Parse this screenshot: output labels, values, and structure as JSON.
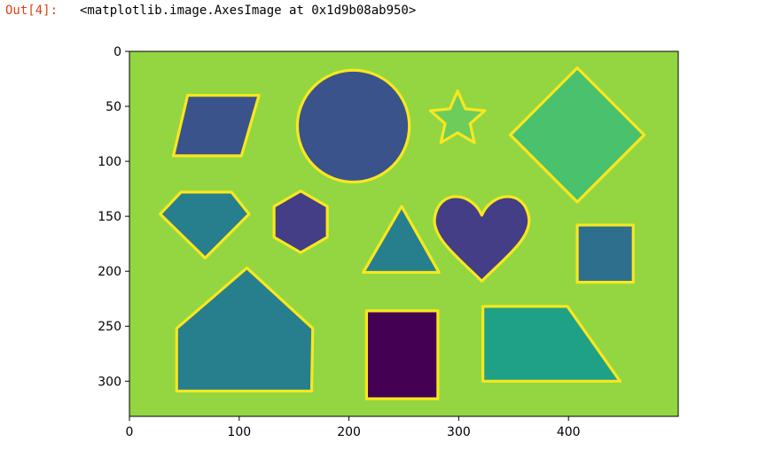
{
  "notebook": {
    "out_prompt": "Out[4]:",
    "out_text": "<matplotlib.image.AxesImage at 0x1d9b08ab950>"
  },
  "plot": {
    "type": "imshow",
    "x_ticks": [
      0,
      100,
      200,
      300,
      400
    ],
    "y_ticks": [
      0,
      50,
      100,
      150,
      200,
      250,
      300
    ],
    "x_range": [
      0,
      500
    ],
    "y_range": [
      0,
      332
    ],
    "colors": {
      "background": "#93d642",
      "outline": "#f9e71e",
      "dark_purple": "#440154",
      "indigo": "#433e85",
      "blue": "#3a538b",
      "steel_blue": "#2e6f8e",
      "teal": "#277f8e",
      "teal_green": "#1fa187",
      "green": "#4ac16d",
      "light_green": "#6ccd5a"
    },
    "shapes": [
      {
        "name": "parallelogram",
        "fill": "blue"
      },
      {
        "name": "circle",
        "fill": "blue"
      },
      {
        "name": "star",
        "fill": "light_green"
      },
      {
        "name": "diamond",
        "fill": "green"
      },
      {
        "name": "pentagon-gem",
        "fill": "teal"
      },
      {
        "name": "hexagon",
        "fill": "indigo"
      },
      {
        "name": "triangle",
        "fill": "teal"
      },
      {
        "name": "heart",
        "fill": "indigo"
      },
      {
        "name": "square",
        "fill": "steel_blue"
      },
      {
        "name": "house",
        "fill": "teal"
      },
      {
        "name": "rectangle",
        "fill": "dark_purple"
      },
      {
        "name": "trapezoid",
        "fill": "teal_green"
      }
    ]
  }
}
